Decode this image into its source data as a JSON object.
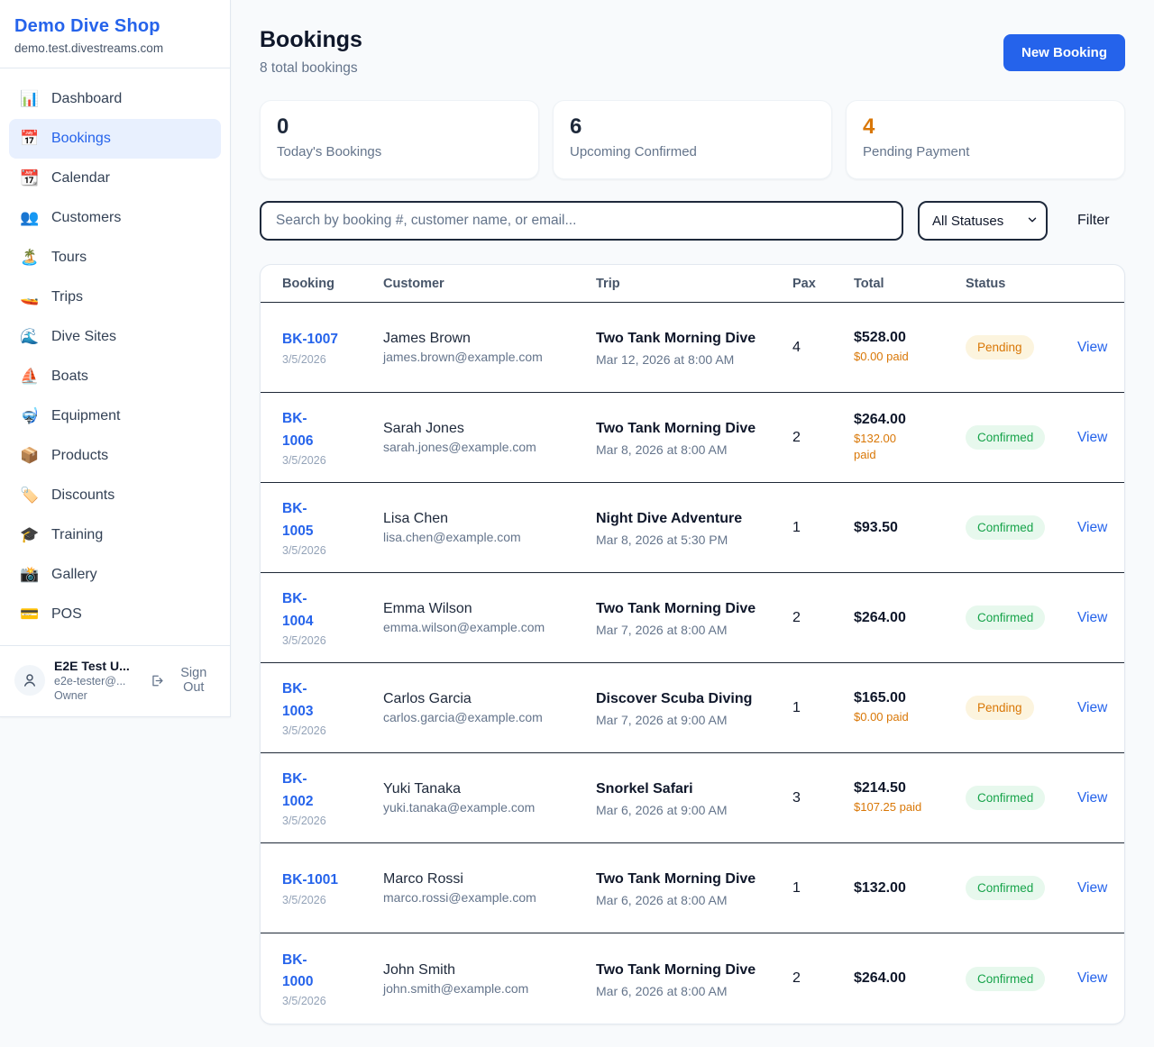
{
  "colors": {
    "accent": "#2563eb",
    "orange": "#d97706",
    "green": "#16a34a",
    "pending_bg": "#fcf4de",
    "confirmed_bg": "#e7f8ed"
  },
  "sidebar": {
    "brand": {
      "name": "Demo Dive Shop",
      "domain": "demo.test.divestreams.com"
    },
    "nav": [
      {
        "label": "Dashboard",
        "icon": "bar-chart-icon",
        "active": false
      },
      {
        "label": "Bookings",
        "icon": "calendar-icon",
        "active": true
      },
      {
        "label": "Calendar",
        "icon": "tear-off-calendar-icon",
        "active": false
      },
      {
        "label": "Customers",
        "icon": "people-icon",
        "active": false
      },
      {
        "label": "Tours",
        "icon": "island-icon",
        "active": false
      },
      {
        "label": "Trips",
        "icon": "speedboat-icon",
        "active": false
      },
      {
        "label": "Dive Sites",
        "icon": "wave-icon",
        "active": false
      },
      {
        "label": "Boats",
        "icon": "sailboat-icon",
        "active": false
      },
      {
        "label": "Equipment",
        "icon": "diving-mask-icon",
        "active": false
      },
      {
        "label": "Products",
        "icon": "package-icon",
        "active": false
      },
      {
        "label": "Discounts",
        "icon": "tag-icon",
        "active": false
      },
      {
        "label": "Training",
        "icon": "graduation-cap-icon",
        "active": false
      },
      {
        "label": "Gallery",
        "icon": "camera-icon",
        "active": false
      },
      {
        "label": "POS",
        "icon": "credit-card-icon",
        "active": false
      }
    ],
    "user": {
      "name": "E2E Test U...",
      "email": "e2e-tester@...",
      "role": "Owner",
      "signout_label": "Sign Out"
    }
  },
  "header": {
    "title": "Bookings",
    "subtitle": "8 total bookings",
    "new_booking_label": "New Booking"
  },
  "stats": [
    {
      "value": "0",
      "label": "Today's Bookings",
      "highlight": false
    },
    {
      "value": "6",
      "label": "Upcoming Confirmed",
      "highlight": false
    },
    {
      "value": "4",
      "label": "Pending Payment",
      "highlight": true
    }
  ],
  "filters": {
    "search_placeholder": "Search by booking #, customer name, or email...",
    "status_selected": "All Statuses",
    "filter_label": "Filter"
  },
  "table": {
    "columns": [
      "Booking",
      "Customer",
      "Trip",
      "Pax",
      "Total",
      "Status"
    ],
    "view_label": "View",
    "rows": [
      {
        "id": "BK-1007",
        "id_display": "BK-1007",
        "date": "3/5/2026",
        "customer": "James Brown",
        "email": "james.brown@example.com",
        "trip": "Two Tank Morning Dive",
        "trip_datetime": "Mar 12, 2026 at 8:00 AM",
        "pax": "4",
        "total": "$528.00",
        "paid": "$0.00 paid",
        "status": "Pending"
      },
      {
        "id": "BK-1006",
        "id_display": "BK-\n1006",
        "date": "3/5/2026",
        "customer": "Sarah Jones",
        "email": "sarah.jones@example.com",
        "trip": "Two Tank Morning Dive",
        "trip_datetime": "Mar 8, 2026 at 8:00 AM",
        "pax": "2",
        "total": "$264.00",
        "paid": "$132.00\npaid",
        "status": "Confirmed"
      },
      {
        "id": "BK-1005",
        "id_display": "BK-\n1005",
        "date": "3/5/2026",
        "customer": "Lisa Chen",
        "email": "lisa.chen@example.com",
        "trip": "Night Dive Adventure",
        "trip_datetime": "Mar 8, 2026 at 5:30 PM",
        "pax": "1",
        "total": "$93.50",
        "paid": "",
        "status": "Confirmed"
      },
      {
        "id": "BK-1004",
        "id_display": "BK-\n1004",
        "date": "3/5/2026",
        "customer": "Emma Wilson",
        "email": "emma.wilson@example.com",
        "trip": "Two Tank Morning Dive",
        "trip_datetime": "Mar 7, 2026 at 8:00 AM",
        "pax": "2",
        "total": "$264.00",
        "paid": "",
        "status": "Confirmed"
      },
      {
        "id": "BK-1003",
        "id_display": "BK-\n1003",
        "date": "3/5/2026",
        "customer": "Carlos Garcia",
        "email": "carlos.garcia@example.com",
        "trip": "Discover Scuba Diving",
        "trip_datetime": "Mar 7, 2026 at 9:00 AM",
        "pax": "1",
        "total": "$165.00",
        "paid": "$0.00 paid",
        "status": "Pending"
      },
      {
        "id": "BK-1002",
        "id_display": "BK-\n1002",
        "date": "3/5/2026",
        "customer": "Yuki Tanaka",
        "email": "yuki.tanaka@example.com",
        "trip": "Snorkel Safari",
        "trip_datetime": "Mar 6, 2026 at 9:00 AM",
        "pax": "3",
        "total": "$214.50",
        "paid": "$107.25 paid",
        "status": "Confirmed"
      },
      {
        "id": "BK-1001",
        "id_display": "BK-1001",
        "date": "3/5/2026",
        "customer": "Marco Rossi",
        "email": "marco.rossi@example.com",
        "trip": "Two Tank Morning Dive",
        "trip_datetime": "Mar 6, 2026 at 8:00 AM",
        "pax": "1",
        "total": "$132.00",
        "paid": "",
        "status": "Confirmed"
      },
      {
        "id": "BK-1000",
        "id_display": "BK-\n1000",
        "date": "3/5/2026",
        "customer": "John Smith",
        "email": "john.smith@example.com",
        "trip": "Two Tank Morning Dive",
        "trip_datetime": "Mar 6, 2026 at 8:00 AM",
        "pax": "2",
        "total": "$264.00",
        "paid": "",
        "status": "Confirmed"
      }
    ]
  }
}
